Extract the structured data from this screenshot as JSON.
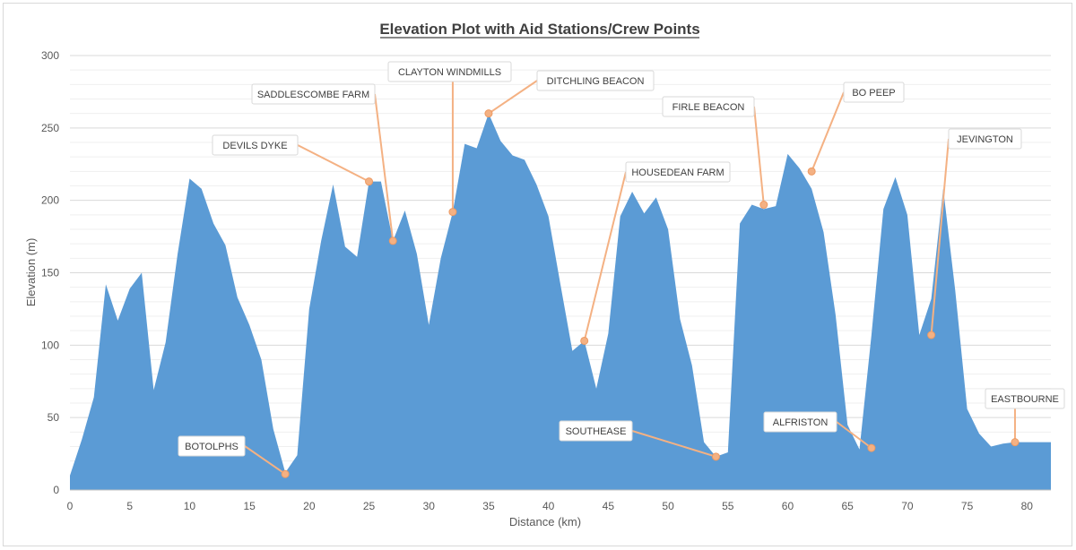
{
  "chart_data": {
    "type": "area",
    "title": "Elevation Plot with Aid Stations/Crew Points",
    "xlabel": "Distance (km)",
    "ylabel": "Elevation (m)",
    "xlim": [
      0,
      82
    ],
    "ylim": [
      0,
      300
    ],
    "x_ticks": [
      "0",
      "5",
      "10",
      "15",
      "20",
      "25",
      "30",
      "35",
      "40",
      "45",
      "50",
      "55",
      "60",
      "65",
      "70",
      "75",
      "80"
    ],
    "y_ticks": [
      "0",
      "50",
      "100",
      "150",
      "200",
      "250",
      "300"
    ],
    "grid": true,
    "fill_color": "#5b9bd5",
    "callout_color": "#f4b183",
    "series": [
      {
        "x": [
          0,
          1,
          2,
          3,
          4,
          5,
          6,
          7,
          8,
          9,
          10,
          11,
          12,
          13,
          14,
          15,
          16,
          17,
          18,
          19,
          20,
          21,
          22,
          23,
          24,
          25,
          26,
          27,
          28,
          29,
          30,
          31,
          32,
          33,
          34,
          35,
          36,
          37,
          38,
          39,
          40,
          41,
          42,
          43,
          44,
          45,
          46,
          47,
          48,
          49,
          50,
          51,
          52,
          53,
          54,
          55,
          56,
          57,
          58,
          59,
          60,
          61,
          62,
          63,
          64,
          65,
          66,
          67,
          68,
          69,
          70,
          71,
          72,
          73,
          74,
          75,
          76,
          77,
          78,
          79,
          80,
          81,
          82
        ],
        "y": [
          10,
          35,
          64,
          142,
          117,
          139,
          150,
          69,
          102,
          163,
          215,
          208,
          184,
          169,
          133,
          114,
          90,
          42,
          12,
          24,
          125,
          172,
          211,
          168,
          161,
          213,
          213,
          172,
          193,
          163,
          114,
          160,
          192,
          239,
          236,
          260,
          241,
          231,
          228,
          211,
          189,
          142,
          96,
          103,
          70,
          108,
          189,
          206,
          191,
          202,
          180,
          118,
          86,
          33,
          23,
          26,
          184,
          197,
          194,
          196,
          232,
          222,
          208,
          178,
          121,
          45,
          28,
          107,
          194,
          216,
          190,
          107,
          132,
          208,
          138,
          56,
          39,
          30,
          32,
          33,
          33,
          33,
          33
        ]
      }
    ],
    "annotations": [
      {
        "label": "BOTOLPHS",
        "x": 18,
        "y": 11
      },
      {
        "label": "DEVILS DYKE",
        "x": 25,
        "y": 213
      },
      {
        "label": "SADDLESCOMBE FARM",
        "x": 27,
        "y": 172
      },
      {
        "label": "CLAYTON WINDMILLS",
        "x": 32,
        "y": 192
      },
      {
        "label": "DITCHLING BEACON",
        "x": 35,
        "y": 260
      },
      {
        "label": "HOUSEDEAN FARM",
        "x": 43,
        "y": 103
      },
      {
        "label": "SOUTHEASE",
        "x": 54,
        "y": 23
      },
      {
        "label": "FIRLE BEACON",
        "x": 58,
        "y": 197
      },
      {
        "label": "BO PEEP",
        "x": 62,
        "y": 220
      },
      {
        "label": "ALFRISTON",
        "x": 67,
        "y": 29
      },
      {
        "label": "JEVINGTON",
        "x": 72,
        "y": 107
      },
      {
        "label": "EASTBOURNE",
        "x": 79,
        "y": 33
      }
    ]
  }
}
